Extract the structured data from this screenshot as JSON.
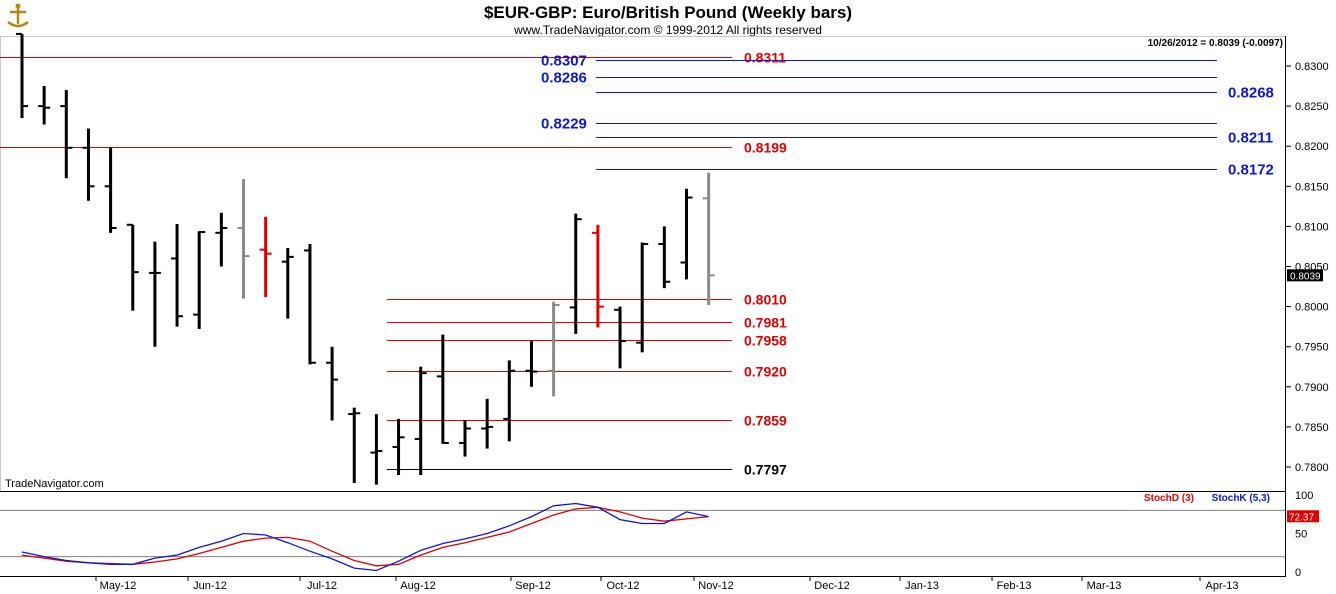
{
  "header": {
    "title": "$EUR-GBP:  Euro/British Pound  (Weekly bars)",
    "copyright": "www.TradeNavigator.com © 1999-2012 All rights reserved",
    "readout": "10/26/2012 = 0.8039 (-0.0097)"
  },
  "watermark": "TradeNavigator.com",
  "colors": {
    "up": "#000000",
    "down": "#000000",
    "gray": "#8a8a8a",
    "red": "#e00000",
    "blue": "#0a17d6",
    "stochD": "#e00000",
    "stochK": "#0a17d6"
  },
  "chart_data": {
    "type": "ohlc",
    "y_ticks": [
      "0.8300",
      "0.8250",
      "0.8200",
      "0.8150",
      "0.8100",
      "0.8050",
      "0.8000",
      "0.7950",
      "0.7900",
      "0.7850",
      "0.7800"
    ],
    "ylim": [
      0.7775,
      0.8355
    ],
    "x_labels": [
      "May-12",
      "Jun-12",
      "Jul-12",
      "Aug-12",
      "Sep-12",
      "Oct-12",
      "Nov-12",
      "Dec-12",
      "Jan-13",
      "Feb-13",
      "Mar-13",
      "Apr-13"
    ],
    "last_price": "0.8039",
    "bars": [
      {
        "o": 0.834,
        "h": 0.834,
        "l": 0.8235,
        "c": 0.825,
        "col": "black"
      },
      {
        "o": 0.825,
        "h": 0.8275,
        "l": 0.8227,
        "c": 0.8248,
        "col": "black"
      },
      {
        "o": 0.825,
        "h": 0.827,
        "l": 0.816,
        "c": 0.8198,
        "col": "black"
      },
      {
        "o": 0.8198,
        "h": 0.8222,
        "l": 0.8132,
        "c": 0.815,
        "col": "black"
      },
      {
        "o": 0.815,
        "h": 0.8198,
        "l": 0.8092,
        "c": 0.8098,
        "col": "black"
      },
      {
        "o": 0.8102,
        "h": 0.8102,
        "l": 0.7995,
        "c": 0.8043,
        "col": "black"
      },
      {
        "o": 0.8042,
        "h": 0.8081,
        "l": 0.795,
        "c": 0.8042,
        "col": "black"
      },
      {
        "o": 0.806,
        "h": 0.8103,
        "l": 0.7975,
        "c": 0.7988,
        "col": "black"
      },
      {
        "o": 0.799,
        "h": 0.8094,
        "l": 0.7972,
        "c": 0.8093,
        "col": "black"
      },
      {
        "o": 0.8092,
        "h": 0.8117,
        "l": 0.805,
        "c": 0.8098,
        "col": "black"
      },
      {
        "o": 0.8098,
        "h": 0.8159,
        "l": 0.801,
        "c": 0.8063,
        "col": "gray"
      },
      {
        "o": 0.8071,
        "h": 0.8112,
        "l": 0.8012,
        "c": 0.8066,
        "col": "red"
      },
      {
        "o": 0.8056,
        "h": 0.8073,
        "l": 0.7985,
        "c": 0.8062,
        "col": "black"
      },
      {
        "o": 0.807,
        "h": 0.8078,
        "l": 0.7928,
        "c": 0.793,
        "col": "black"
      },
      {
        "o": 0.793,
        "h": 0.795,
        "l": 0.7858,
        "c": 0.7909,
        "col": "black"
      },
      {
        "o": 0.7866,
        "h": 0.7874,
        "l": 0.778,
        "c": 0.7867,
        "col": "black"
      },
      {
        "o": 0.7818,
        "h": 0.7866,
        "l": 0.7778,
        "c": 0.782,
        "col": "black"
      },
      {
        "o": 0.7825,
        "h": 0.786,
        "l": 0.779,
        "c": 0.7837,
        "col": "black"
      },
      {
        "o": 0.7835,
        "h": 0.7925,
        "l": 0.779,
        "c": 0.7917,
        "col": "black"
      },
      {
        "o": 0.7913,
        "h": 0.7965,
        "l": 0.7829,
        "c": 0.783,
        "col": "black"
      },
      {
        "o": 0.783,
        "h": 0.7858,
        "l": 0.7813,
        "c": 0.7848,
        "col": "black"
      },
      {
        "o": 0.7848,
        "h": 0.7885,
        "l": 0.7823,
        "c": 0.785,
        "col": "black"
      },
      {
        "o": 0.786,
        "h": 0.7933,
        "l": 0.7832,
        "c": 0.792,
        "col": "black"
      },
      {
        "o": 0.792,
        "h": 0.7957,
        "l": 0.79,
        "c": 0.7919,
        "col": "black"
      },
      {
        "o": 0.792,
        "h": 0.8006,
        "l": 0.7888,
        "c": 0.8002,
        "col": "gray"
      },
      {
        "o": 0.7999,
        "h": 0.8116,
        "l": 0.7966,
        "c": 0.8109,
        "col": "black"
      },
      {
        "o": 0.8092,
        "h": 0.8102,
        "l": 0.7974,
        "c": 0.8,
        "col": "red"
      },
      {
        "o": 0.7996,
        "h": 0.8,
        "l": 0.7923,
        "c": 0.7957,
        "col": "black"
      },
      {
        "o": 0.7955,
        "h": 0.808,
        "l": 0.7943,
        "c": 0.8078,
        "col": "black"
      },
      {
        "o": 0.8078,
        "h": 0.81,
        "l": 0.8023,
        "c": 0.8031,
        "col": "black"
      },
      {
        "o": 0.8055,
        "h": 0.8147,
        "l": 0.8034,
        "c": 0.8136,
        "col": "black"
      },
      {
        "o": 0.8135,
        "h": 0.8167,
        "l": 0.8002,
        "c": 0.8039,
        "col": "gray"
      }
    ],
    "levels": [
      {
        "value": 0.8311,
        "label": "0.8311",
        "color": "red",
        "side": "right-full"
      },
      {
        "value": 0.8199,
        "label": "0.8199",
        "color": "red",
        "side": "right-full"
      },
      {
        "value": 0.8307,
        "label": "0.8307",
        "color": "blue",
        "side": "left-label"
      },
      {
        "value": 0.8286,
        "label": "0.8286",
        "color": "blue",
        "side": "left-label"
      },
      {
        "value": 0.8268,
        "label": "0.8268",
        "color": "blue",
        "side": "right-label"
      },
      {
        "value": 0.8229,
        "label": "0.8229",
        "color": "blue",
        "side": "left-label"
      },
      {
        "value": 0.8211,
        "label": "0.8211",
        "color": "blue",
        "side": "right-label"
      },
      {
        "value": 0.8172,
        "label": "0.8172",
        "color": "blue",
        "side": "right-label"
      },
      {
        "value": 0.801,
        "label": "0.8010",
        "color": "red",
        "side": "fib"
      },
      {
        "value": 0.7981,
        "label": "0.7981",
        "color": "red",
        "side": "fib"
      },
      {
        "value": 0.7958,
        "label": "0.7958",
        "color": "red",
        "side": "fib"
      },
      {
        "value": 0.792,
        "label": "0.7920",
        "color": "red",
        "side": "fib"
      },
      {
        "value": 0.7859,
        "label": "0.7859",
        "color": "red",
        "side": "fib"
      },
      {
        "value": 0.7797,
        "label": "0.7797",
        "color": "black",
        "side": "fib"
      }
    ],
    "stochastic": {
      "legend_d": "StochD (3)",
      "legend_k": "StochK (5,3)",
      "y_ticks": [
        "100",
        "50",
        "0"
      ],
      "last_value": "72.37",
      "upper_line": 80,
      "lower_line": 20,
      "k": [
        26,
        20,
        15,
        12,
        10,
        10,
        18,
        22,
        32,
        40,
        50,
        48,
        38,
        27,
        17,
        5,
        2,
        14,
        28,
        37,
        43,
        50,
        60,
        72,
        86,
        89,
        84,
        68,
        63,
        63,
        78,
        72
      ],
      "d": [
        22,
        18,
        14,
        12,
        11,
        10,
        13,
        17,
        24,
        32,
        40,
        44,
        45,
        40,
        27,
        15,
        8,
        10,
        22,
        32,
        38,
        45,
        52,
        63,
        74,
        82,
        84,
        78,
        70,
        66,
        69,
        72
      ]
    }
  }
}
